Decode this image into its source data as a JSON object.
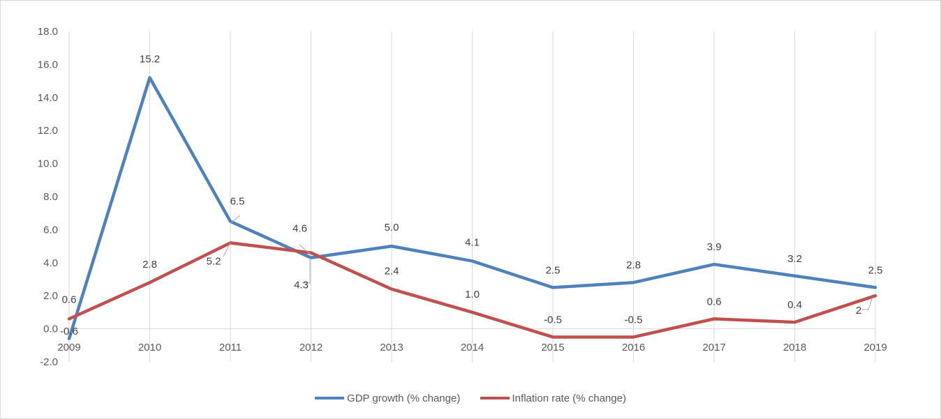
{
  "chart_data": {
    "type": "line",
    "categories": [
      "2009",
      "2010",
      "2011",
      "2012",
      "2013",
      "2014",
      "2015",
      "2016",
      "2017",
      "2018",
      "2019"
    ],
    "ylim": [
      -2.0,
      18.0
    ],
    "ytick_step": 2.0,
    "yticks": [
      "-2.0",
      "0.0",
      "2.0",
      "4.0",
      "6.0",
      "8.0",
      "10.0",
      "12.0",
      "14.0",
      "16.0",
      "18.0"
    ],
    "grid": "vertical",
    "legend_position": "bottom",
    "series": [
      {
        "name": "GDP growth (% change)",
        "color": "#4f81bd",
        "values": [
          -0.6,
          15.2,
          6.5,
          4.3,
          5.0,
          4.1,
          2.5,
          2.8,
          3.9,
          3.2,
          2.5
        ],
        "labels": [
          "-0.6",
          "15.2",
          "6.5",
          "4.3",
          "5.0",
          "4.1",
          "2.5",
          "2.8",
          "3.9",
          "3.2",
          "2.5"
        ]
      },
      {
        "name": "Inflation rate (% change)",
        "color": "#c0504d",
        "values": [
          0.6,
          2.8,
          5.2,
          4.6,
          2.4,
          1.0,
          -0.5,
          -0.5,
          0.6,
          0.4,
          2.0
        ],
        "labels": [
          "0.6",
          "2.8",
          "5.2",
          "4.6",
          "2.4",
          "1.0",
          "-0.5",
          "-0.5",
          "0.6",
          "0.4",
          "2"
        ]
      }
    ]
  }
}
